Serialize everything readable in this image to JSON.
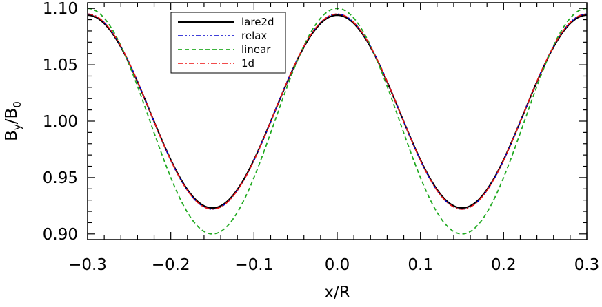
{
  "chart_data": {
    "type": "line",
    "title": "",
    "xlabel": "x/R",
    "ylabel": "B_y/B_0",
    "ylabel_main": "B",
    "ylabel_sub1": "y",
    "ylabel_slash": "/",
    "ylabel_sub2": "0",
    "xlim": [
      -0.3,
      0.3
    ],
    "ylim": [
      0.895,
      1.105
    ],
    "xticks": [
      -0.3,
      -0.2,
      -0.1,
      0.0,
      0.1,
      0.2,
      0.3
    ],
    "xtick_labels": [
      "−0.3",
      "−0.2",
      "−0.1",
      "0.0",
      "0.1",
      "0.2",
      "0.3"
    ],
    "yticks": [
      0.9,
      0.95,
      1.0,
      1.05,
      1.1
    ],
    "ytick_labels": [
      "0.90",
      "0.95",
      "1.00",
      "1.05",
      "1.10"
    ],
    "grid": false,
    "legend_position": "top-left-center",
    "period": 0.3,
    "series": [
      {
        "name": "lare2d",
        "color": "#000000",
        "dash": "",
        "width": 2.2,
        "mean": 1.0085,
        "amplitude": 0.0855,
        "shift": 0.0
      },
      {
        "name": "relax",
        "color": "#0000cc",
        "dash": "8,3,2,3,2,3,2,3",
        "width": 1.6,
        "mean": 1.0085,
        "amplitude": 0.0865,
        "shift": 0.0
      },
      {
        "name": "linear",
        "color": "#22aa22",
        "dash": "6,4",
        "width": 1.8,
        "mean": 1.0,
        "amplitude": 0.1,
        "shift": 0.0
      },
      {
        "name": "1d",
        "color": "#ee1111",
        "dash": "8,3,2,3",
        "width": 1.6,
        "mean": 1.0085,
        "amplitude": 0.0865,
        "shift": 0.0
      }
    ]
  }
}
